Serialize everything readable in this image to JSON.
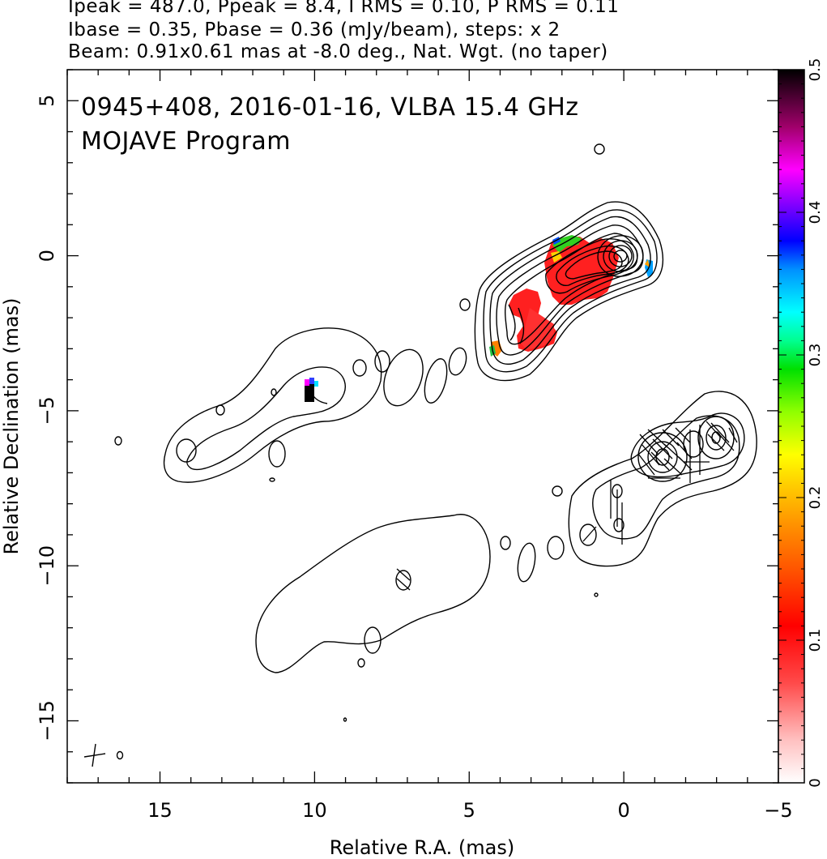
{
  "header": {
    "line1": "Ipeak = 487.0, Ppeak = 8.4, I RMS = 0.10, P RMS = 0.11",
    "line2": "Ibase = 0.35, Pbase = 0.36 (mJy/beam), steps: x 2",
    "line3": "Beam: 0.91x0.61 mas at -8.0 deg., Nat. Wgt. (no taper)"
  },
  "chart_data": {
    "type": "heatmap",
    "title": "0945+408, 2016-01-16, VLBA 15.4 GHz",
    "subtitle": "MOJAVE Program",
    "xlabel": "Relative R.A. (mas)",
    "ylabel": "Relative Declination (mas)",
    "xlim": [
      18,
      -5
    ],
    "ylim": [
      -17,
      6
    ],
    "xticks": [
      15,
      10,
      5,
      0,
      -5
    ],
    "yticks": [
      5,
      0,
      -5,
      -10,
      -15
    ],
    "xtick_labels": [
      "15",
      "10",
      "5",
      "0",
      "−5"
    ],
    "ytick_labels": [
      "5",
      "0",
      "−5",
      "−10",
      "−15"
    ],
    "colorbar": {
      "range": [
        0,
        0.5
      ],
      "ticks": [
        0,
        0.1,
        0.2,
        0.3,
        0.4,
        0.5
      ],
      "tick_labels": [
        "0",
        "0.1",
        "0.2",
        "0.3",
        "0.4",
        "0.5"
      ]
    },
    "upper_panel": {
      "core": [
        0,
        0
      ],
      "contour_levels": 9,
      "polarization_fraction_regions": [
        {
          "x": 1.5,
          "y": -0.3,
          "value": 0.09
        },
        {
          "x": 3.2,
          "y": -1.8,
          "value": 0.09
        },
        {
          "x": 2.6,
          "y": -2.7,
          "value": 0.09
        },
        {
          "x": 2.0,
          "y": 0.6,
          "value": 0.22
        },
        {
          "x": -1.0,
          "y": -0.2,
          "value": 0.3
        },
        {
          "x": 4.1,
          "y": -3.1,
          "value": 0.18
        },
        {
          "x": 10.1,
          "y": -4.3,
          "value": 0.5
        }
      ]
    },
    "lower_panel": {
      "core_offset": [
        -1.5,
        -6.2
      ],
      "contour_levels": 5
    },
    "beam": {
      "major_mas": 0.91,
      "minor_mas": 0.61,
      "pa_deg": -8.0
    }
  }
}
